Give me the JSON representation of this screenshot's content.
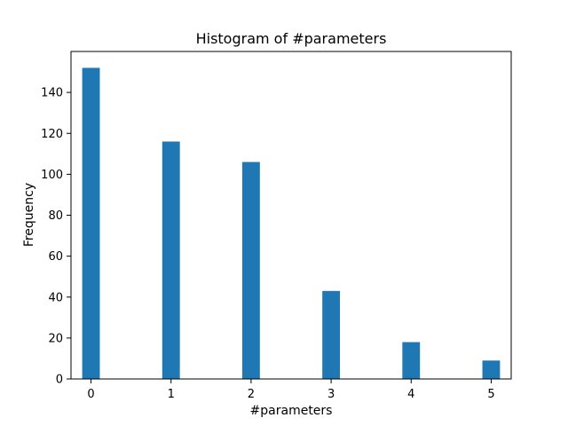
{
  "chart_data": {
    "type": "bar",
    "title": "Histogram of #parameters",
    "xlabel": "#parameters",
    "ylabel": "Frequency",
    "bar_color": "#1f77b4",
    "grid": false,
    "x": [
      0,
      1,
      2,
      3,
      4,
      5
    ],
    "values": [
      152,
      116,
      106,
      43,
      18,
      9
    ],
    "xlim": [
      -0.25,
      5.25
    ],
    "ylim": [
      0,
      160
    ],
    "xticks": [
      0,
      1,
      2,
      3,
      4,
      5
    ],
    "yticks": [
      0,
      20,
      40,
      60,
      80,
      100,
      120,
      140
    ]
  }
}
